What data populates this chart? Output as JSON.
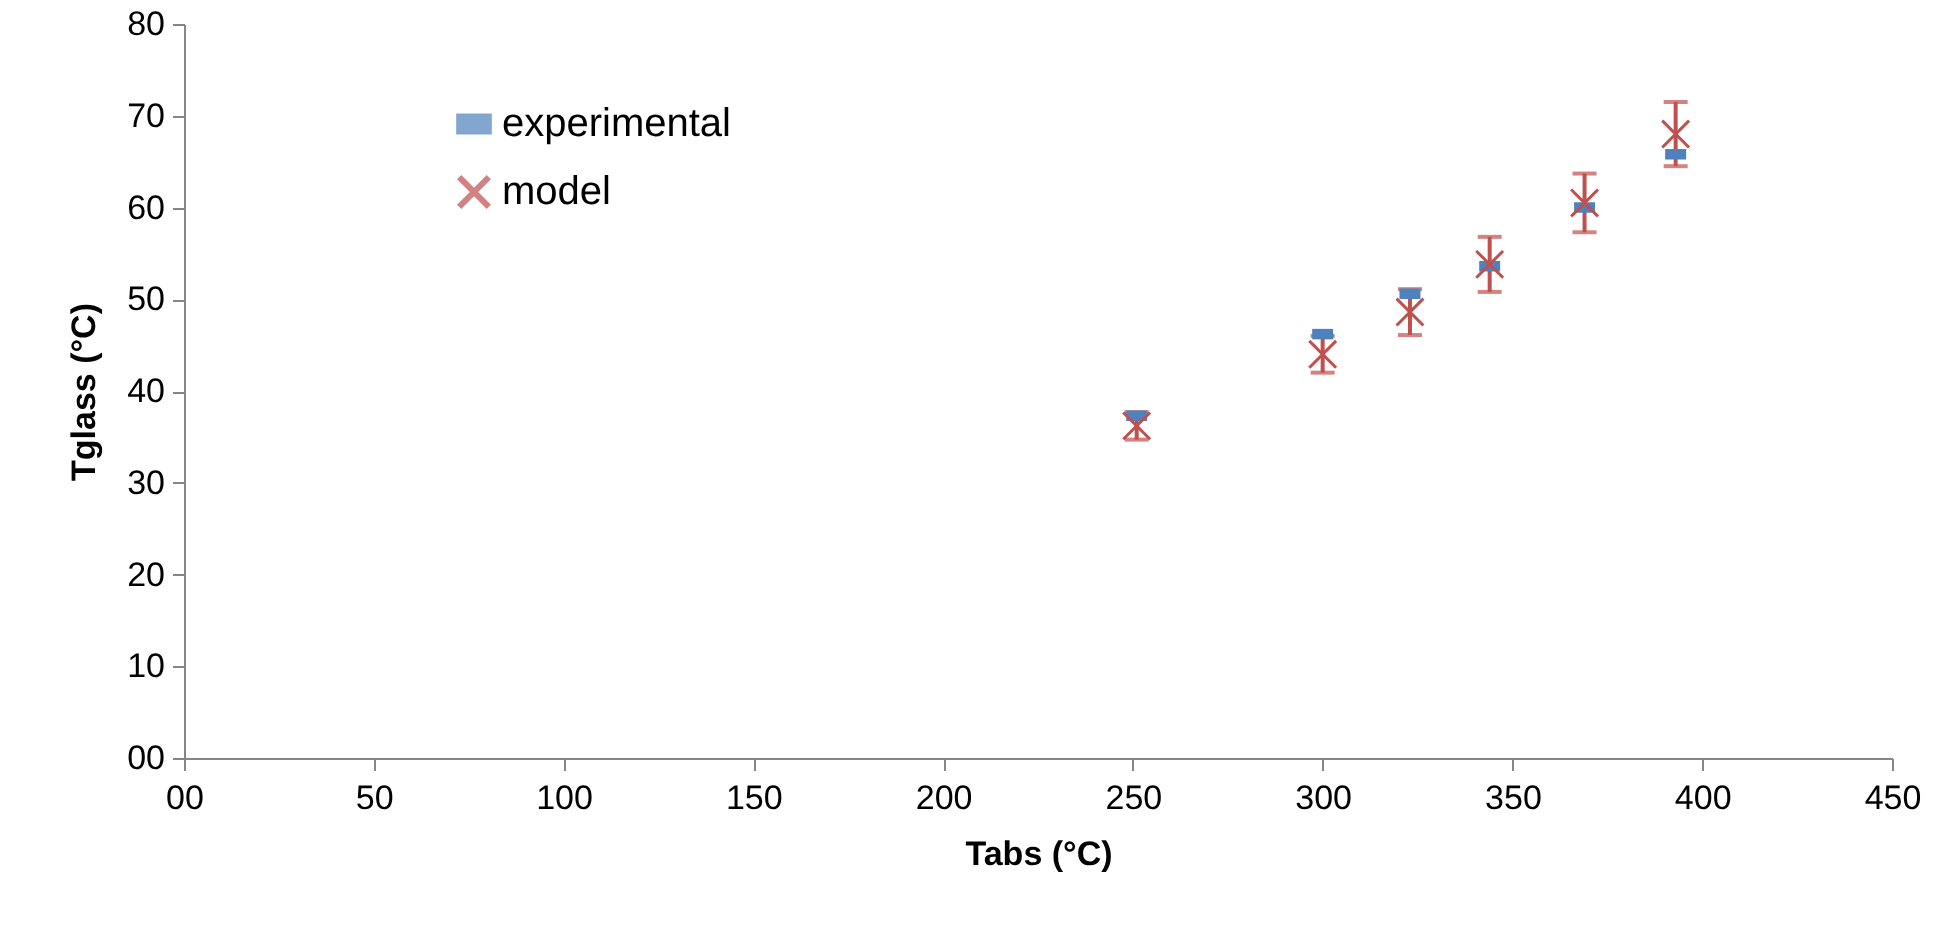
{
  "chart_data": {
    "type": "scatter",
    "xlabel": "Tabs (°C)",
    "ylabel": "Tglass (°C)",
    "xlim": [
      0,
      450
    ],
    "xticks": [
      {
        "value": 0,
        "label": "00"
      },
      50,
      100,
      150,
      200,
      250,
      300,
      350,
      400,
      450
    ],
    "ylim": [
      0,
      80
    ],
    "yticks": [
      {
        "value": 0,
        "label": "00"
      },
      10,
      20,
      30,
      40,
      50,
      60,
      70,
      80
    ],
    "x": [
      251,
      300,
      323,
      344,
      369,
      393
    ],
    "series": [
      {
        "name": "experimental",
        "color": "#4f81bd",
        "marker": "square",
        "values": [
          37.3,
          46.2,
          50.6,
          53.6,
          60,
          65.8
        ]
      },
      {
        "name": "model",
        "color": "#c0504d",
        "marker": "cross",
        "values": [
          36.2,
          44,
          48.6,
          53.8,
          60.5,
          68
        ],
        "errors": [
          1.5,
          2,
          2.5,
          3,
          3.2,
          3.5
        ]
      }
    ],
    "grid": false,
    "legend": "top left"
  }
}
